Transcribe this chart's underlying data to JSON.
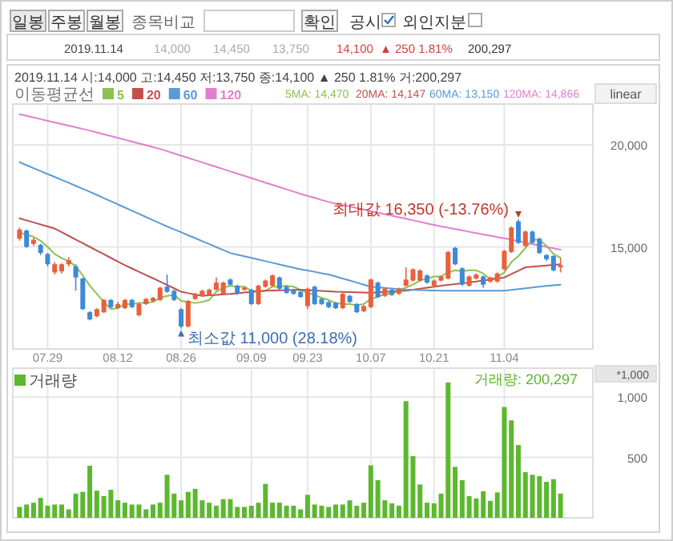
{
  "chart_data": [
    {
      "type": "candlestick",
      "legend_title": "이동평균선",
      "legend": "top left",
      "grid": true,
      "categories": [
        null,
        null,
        null,
        null,
        "07.29",
        null,
        null,
        null,
        null,
        null,
        null,
        null,
        null,
        null,
        "08.12",
        null,
        null,
        null,
        null,
        null,
        null,
        null,
        null,
        "08.26",
        null,
        null,
        null,
        null,
        null,
        null,
        null,
        null,
        null,
        "09.09",
        null,
        null,
        null,
        null,
        null,
        null,
        null,
        "09.23",
        null,
        null,
        null,
        null,
        null,
        null,
        null,
        null,
        "10.07",
        null,
        null,
        null,
        null,
        null,
        null,
        null,
        null,
        "10.21",
        null,
        null,
        null,
        null,
        null,
        null,
        null,
        null,
        null,
        "11.04",
        null,
        null,
        null,
        null,
        null,
        null,
        null,
        null
      ],
      "ohlc": [
        [
          15400,
          15950,
          15300,
          15850
        ],
        [
          15800,
          15850,
          14950,
          15000
        ],
        [
          15150,
          15450,
          15050,
          15350
        ],
        [
          15100,
          15150,
          14600,
          14700
        ],
        [
          14650,
          14700,
          14050,
          14150
        ],
        [
          13750,
          14250,
          13650,
          14150
        ],
        [
          13800,
          14200,
          13700,
          14150
        ],
        [
          14150,
          14500,
          14050,
          14350
        ],
        [
          14050,
          14150,
          12850,
          13500
        ],
        [
          13450,
          13500,
          11900,
          11950
        ],
        [
          11800,
          11850,
          11400,
          11450
        ],
        [
          11600,
          12000,
          11550,
          11950
        ],
        [
          11800,
          12450,
          11750,
          12400
        ],
        [
          12400,
          12450,
          12000,
          12050
        ],
        [
          12000,
          12300,
          11950,
          12200
        ],
        [
          12000,
          12450,
          11950,
          12400
        ],
        [
          12400,
          12450,
          12000,
          12050
        ],
        [
          11650,
          12250,
          11600,
          12200
        ],
        [
          12200,
          12500,
          12150,
          12450
        ],
        [
          12350,
          12550,
          12300,
          12500
        ],
        [
          12400,
          13050,
          12350,
          13000
        ],
        [
          13050,
          13650,
          12750,
          12800
        ],
        [
          12850,
          12900,
          12350,
          12400
        ],
        [
          11950,
          12000,
          11000,
          11100
        ],
        [
          11100,
          12400,
          11050,
          12350
        ],
        [
          12450,
          12750,
          12400,
          12700
        ],
        [
          12600,
          12900,
          12550,
          12850
        ],
        [
          12650,
          12950,
          12600,
          12900
        ],
        [
          12900,
          13500,
          12850,
          13250
        ],
        [
          12700,
          13300,
          12650,
          13250
        ],
        [
          13400,
          13450,
          13100,
          13150
        ],
        [
          13100,
          13150,
          12650,
          12700
        ],
        [
          12900,
          13050,
          12850,
          13000
        ],
        [
          12900,
          12950,
          12150,
          12200
        ],
        [
          12200,
          13150,
          12150,
          13100
        ],
        [
          13050,
          13400,
          13000,
          13350
        ],
        [
          13100,
          13650,
          13050,
          13600
        ],
        [
          13500,
          13550,
          12900,
          12950
        ],
        [
          13050,
          13100,
          12700,
          12750
        ],
        [
          12900,
          12950,
          12650,
          12700
        ],
        [
          12800,
          12850,
          12500,
          12550
        ],
        [
          12100,
          13000,
          11950,
          12950
        ],
        [
          13050,
          13100,
          12150,
          12200
        ],
        [
          12450,
          12500,
          12150,
          12200
        ],
        [
          12300,
          12350,
          12000,
          12050
        ],
        [
          12250,
          12300,
          11950,
          12000
        ],
        [
          12000,
          12750,
          11950,
          12700
        ],
        [
          12600,
          12650,
          12250,
          12300
        ],
        [
          12200,
          12250,
          11750,
          11800
        ],
        [
          11850,
          12150,
          11800,
          12100
        ],
        [
          12050,
          13450,
          12000,
          13400
        ],
        [
          13250,
          13300,
          12500,
          12550
        ],
        [
          12600,
          13000,
          12550,
          12950
        ],
        [
          12900,
          12950,
          12600,
          12650
        ],
        [
          12700,
          13000,
          12650,
          12950
        ],
        [
          13100,
          14000,
          13050,
          13400
        ],
        [
          13350,
          13950,
          13300,
          13900
        ],
        [
          13350,
          13900,
          13300,
          13850
        ],
        [
          13600,
          13650,
          13200,
          13250
        ],
        [
          13100,
          13400,
          13050,
          13350
        ],
        [
          13350,
          13600,
          13300,
          13550
        ],
        [
          13450,
          14800,
          13400,
          14750
        ],
        [
          14950,
          15000,
          14100,
          14150
        ],
        [
          13950,
          14000,
          13100,
          13150
        ],
        [
          13100,
          13600,
          13050,
          13550
        ],
        [
          13450,
          13700,
          13400,
          13650
        ],
        [
          13550,
          13600,
          13000,
          13150
        ],
        [
          13300,
          13550,
          13250,
          13500
        ],
        [
          13300,
          13750,
          13250,
          13700
        ],
        [
          13900,
          14850,
          13850,
          14800
        ],
        [
          14750,
          16000,
          14700,
          15950
        ],
        [
          16250,
          16350,
          15150,
          15200
        ],
        [
          15050,
          15800,
          15000,
          15750
        ],
        [
          15750,
          15800,
          15150,
          15200
        ],
        [
          15400,
          15450,
          14650,
          14700
        ],
        [
          14600,
          14650,
          14300,
          14400
        ],
        [
          14550,
          14600,
          13800,
          13850
        ],
        [
          14000,
          14450,
          13750,
          14100
        ]
      ],
      "colors": [
        "#e8603c",
        "#3c8ad8",
        "#e8603c",
        "#3c8ad8",
        "#3c8ad8",
        "#e8603c",
        "#e8603c",
        "#e8603c",
        "#3c8ad8",
        "#3c8ad8",
        "#3c8ad8",
        "#e8603c",
        "#e8603c",
        "#3c8ad8",
        "#e8603c",
        "#e8603c",
        "#3c8ad8",
        "#e8603c",
        "#e8603c",
        "#e8603c",
        "#e8603c",
        "#3c8ad8",
        "#3c8ad8",
        "#3c8ad8",
        "#e8603c",
        "#e8603c",
        "#e8603c",
        "#e8603c",
        "#e8603c",
        "#e8603c",
        "#3c8ad8",
        "#3c8ad8",
        "#e8603c",
        "#3c8ad8",
        "#e8603c",
        "#e8603c",
        "#e8603c",
        "#3c8ad8",
        "#3c8ad8",
        "#3c8ad8",
        "#3c8ad8",
        "#e8603c",
        "#3c8ad8",
        "#3c8ad8",
        "#3c8ad8",
        "#3c8ad8",
        "#e8603c",
        "#3c8ad8",
        "#3c8ad8",
        "#e8603c",
        "#e8603c",
        "#3c8ad8",
        "#e8603c",
        "#3c8ad8",
        "#e8603c",
        "#e8603c",
        "#e8603c",
        "#e8603c",
        "#3c8ad8",
        "#e8603c",
        "#e8603c",
        "#e8603c",
        "#3c8ad8",
        "#3c8ad8",
        "#e8603c",
        "#e8603c",
        "#3c8ad8",
        "#e8603c",
        "#e8603c",
        "#e8603c",
        "#e8603c",
        "#3c8ad8",
        "#e8603c",
        "#3c8ad8",
        "#3c8ad8",
        "#3c8ad8",
        "#3c8ad8",
        "#e8603c"
      ],
      "series": [
        {
          "name": "5",
          "type": "line",
          "color": "#8cc152",
          "values": [
            15700,
            15600,
            15500,
            15300,
            15000,
            14650,
            14450,
            14300,
            14050,
            13600,
            13100,
            12700,
            12300,
            11950,
            12000,
            12200,
            12200,
            12250,
            12250,
            12300,
            12500,
            12600,
            12650,
            12350,
            12300,
            12250,
            12300,
            12400,
            12800,
            13000,
            13100,
            13050,
            13050,
            12850,
            12800,
            12850,
            13050,
            13050,
            13100,
            13050,
            12900,
            12750,
            12650,
            12500,
            12400,
            12250,
            12200,
            12200,
            12150,
            12200,
            12450,
            12550,
            12700,
            12700,
            12900,
            13000,
            13150,
            13350,
            13450,
            13550,
            13550,
            13750,
            13850,
            13800,
            13850,
            13850,
            13700,
            13400,
            13500,
            13750,
            14250,
            14550,
            14950,
            15350,
            15350,
            15050,
            14650,
            14470
          ]
        },
        {
          "name": "20",
          "type": "line",
          "color": "#c0504d",
          "values": [
            16400,
            16300,
            16200,
            16100,
            16000,
            15900,
            15720,
            15540,
            15360,
            15180,
            15000,
            14820,
            14640,
            14460,
            14280,
            14100,
            13940,
            13780,
            13620,
            13460,
            13300,
            13130,
            12970,
            12800,
            12730,
            12670,
            12600,
            12630,
            12650,
            12680,
            12700,
            12730,
            12760,
            12790,
            12820,
            12850,
            12860,
            12870,
            12880,
            12890,
            12900,
            12880,
            12860,
            12840,
            12820,
            12800,
            12790,
            12780,
            12770,
            12760,
            12750,
            12770,
            12790,
            12810,
            12830,
            12850,
            12900,
            12950,
            13000,
            13050,
            13100,
            13140,
            13180,
            13220,
            13260,
            13300,
            13350,
            13400,
            13450,
            13500,
            13670,
            13830,
            14000,
            14030,
            14060,
            14090,
            14120,
            14147
          ]
        },
        {
          "name": "60",
          "type": "line",
          "color": "#5b9bd5",
          "values": [
            19150,
            19000,
            18860,
            18710,
            18570,
            18430,
            18280,
            18140,
            17990,
            17850,
            17700,
            17550,
            17390,
            17240,
            17080,
            16930,
            16770,
            16620,
            16460,
            16310,
            16150,
            16000,
            15860,
            15720,
            15570,
            15430,
            15280,
            15140,
            14990,
            14850,
            14700,
            14620,
            14540,
            14460,
            14380,
            14300,
            14220,
            14140,
            14060,
            13980,
            13900,
            13840,
            13780,
            13710,
            13650,
            13550,
            13450,
            13350,
            13250,
            13150,
            13050,
            13020,
            12990,
            12960,
            12930,
            12900,
            12890,
            12880,
            12870,
            12860,
            12850,
            12850,
            12850,
            12850,
            12850,
            12850,
            12850,
            12850,
            12850,
            12850,
            12890,
            12930,
            12970,
            13010,
            13050,
            13090,
            13120,
            13150
          ]
        },
        {
          "name": "120",
          "type": "line",
          "color": "#e07fd0",
          "values": [
            21500,
            21420,
            21340,
            21260,
            21180,
            21100,
            21020,
            20940,
            20860,
            20780,
            20700,
            20610,
            20520,
            20430,
            20340,
            20250,
            20160,
            20070,
            19980,
            19890,
            19800,
            19690,
            19580,
            19470,
            19360,
            19250,
            19140,
            19030,
            18920,
            18810,
            18700,
            18590,
            18480,
            18370,
            18260,
            18150,
            18040,
            17930,
            17820,
            17710,
            17600,
            17500,
            17400,
            17300,
            17200,
            17120,
            17050,
            16980,
            16900,
            16830,
            16750,
            16680,
            16600,
            16530,
            16450,
            16380,
            16300,
            16230,
            16150,
            16080,
            16000,
            15940,
            15870,
            15810,
            15740,
            15680,
            15610,
            15550,
            15480,
            15420,
            15350,
            15280,
            15210,
            15140,
            15070,
            15000,
            14930,
            14866
          ]
        }
      ],
      "ylim": [
        10000,
        22000
      ],
      "yticks": [
        {
          "value": 15000,
          "label": "15,000"
        },
        {
          "value": 20000,
          "label": "20,000"
        }
      ],
      "annotations": [
        "일봉",
        "주봉",
        "월봉",
        "종목비교",
        "확인",
        "공시",
        "외인지분",
        "2019.11.14",
        "14,000",
        "14,450",
        "13,750",
        "14,100",
        "▲ 250 1.81%",
        "200,297",
        "2019.11.14 시:14,000 고:14,450 저:13,750 종:14,100 ▲ 250 1.81% 거:200,297",
        "5MA: 14,470",
        "20MA: 14,147",
        "60MA: 13,150",
        "120MA: 14,866",
        "linear",
        {
          "text": "최대값 16,350 (-13.76%)",
          "y": 16350
        },
        {
          "text": "최소값 11,000 (28.18%)",
          "x": "08.26",
          "y": 11000
        }
      ]
    },
    {
      "type": "bar",
      "grid": true,
      "tick_labels": "y",
      "legend": "top left",
      "categories": [
        null,
        null,
        null,
        null,
        "07.29",
        null,
        null,
        null,
        null,
        null,
        null,
        null,
        null,
        null,
        "08.12",
        null,
        null,
        null,
        null,
        null,
        null,
        null,
        null,
        "08.26",
        null,
        null,
        null,
        null,
        null,
        null,
        null,
        null,
        null,
        "09.09",
        null,
        null,
        null,
        null,
        null,
        null,
        null,
        "09.23",
        null,
        null,
        null,
        null,
        null,
        null,
        null,
        null,
        "10.07",
        null,
        null,
        null,
        null,
        null,
        null,
        null,
        null,
        "10.21",
        null,
        null,
        null,
        null,
        null,
        null,
        null,
        null,
        null,
        "11.04",
        null,
        null,
        null,
        null,
        null,
        null,
        null,
        null
      ],
      "series": [
        {
          "name": "거래량",
          "color": "#5cb82e",
          "values": [
            90,
            110,
            125,
            165,
            100,
            110,
            110,
            70,
            200,
            215,
            431,
            225,
            180,
            232,
            145,
            125,
            110,
            110,
            70,
            110,
            125,
            356,
            200,
            145,
            215,
            240,
            145,
            125,
            100,
            155,
            155,
            90,
            90,
            100,
            125,
            281,
            125,
            125,
            100,
            100,
            70,
            190,
            110,
            100,
            90,
            110,
            110,
            145,
            100,
            125,
            435,
            312,
            145,
            120,
            100,
            966,
            511,
            276,
            125,
            120,
            200,
            1121,
            422,
            312,
            180,
            160,
            220,
            140,
            210,
            918,
            807,
            603,
            378,
            356,
            345,
            298,
            320,
            200
          ]
        }
      ],
      "ylim": [
        0,
        1240
      ],
      "yticks": [
        500,
        {
          "value": 1000,
          "label": "1,000"
        }
      ],
      "annotations": [
        "거래량: 200,297",
        "*1,000"
      ]
    }
  ]
}
